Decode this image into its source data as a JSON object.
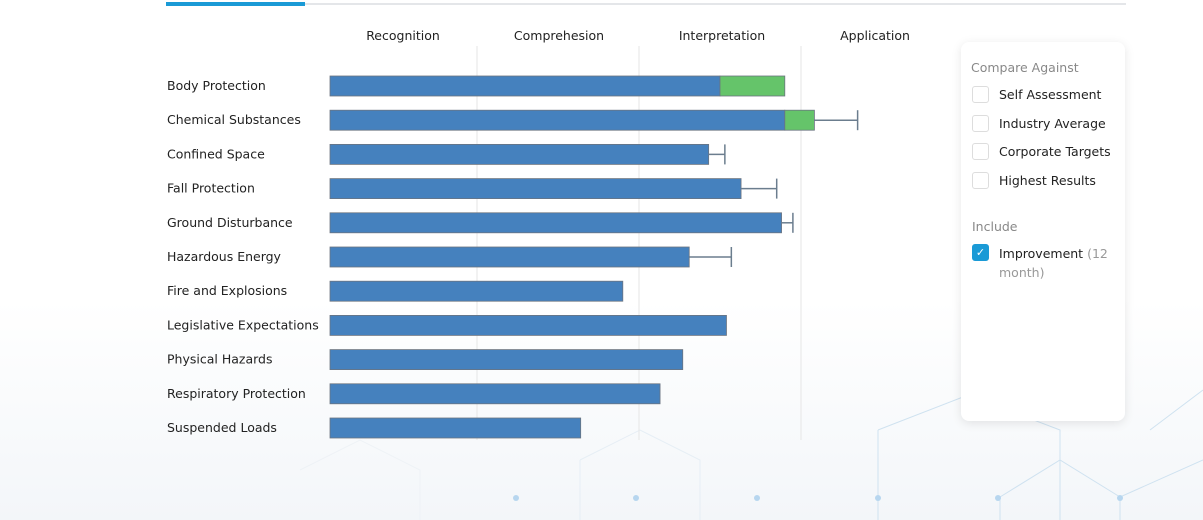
{
  "tabs": {
    "active_index": 0
  },
  "chart_data": {
    "type": "bar",
    "orientation": "horizontal",
    "stacked": true,
    "x_levels": [
      "Recognition",
      "Comprehesion",
      "Interpretation",
      "Application"
    ],
    "xlim": [
      0,
      4
    ],
    "grid": true,
    "categories": [
      "Body Protection",
      "Chemical Substances",
      "Confined Space",
      "Fall Protection",
      "Ground Disturbance",
      "Hazardous Energy",
      "Fire and Explosions",
      "Legislative Expectations",
      "Physical Hazards",
      "Respiratory Protection",
      "Suspended Loads"
    ],
    "series": [
      {
        "color": "#4581be",
        "values": [
          2.5,
          2.9,
          2.43,
          2.63,
          2.88,
          2.31,
          1.9,
          2.54,
          2.27,
          2.13,
          1.64
        ]
      },
      {
        "color": "#65c46a",
        "values": [
          0.4,
          0.19,
          0,
          0,
          0,
          0,
          0,
          0,
          0,
          0,
          0
        ]
      }
    ],
    "error_upper": [
      null,
      3.38,
      2.53,
      2.85,
      2.95,
      2.57,
      null,
      null,
      null,
      null,
      null
    ],
    "error_color": "#6b7d8e"
  },
  "panel": {
    "compare_title": "Compare Against",
    "compare_options": [
      {
        "label": "Self Assessment",
        "checked": false
      },
      {
        "label": "Industry Average",
        "checked": false
      },
      {
        "label": "Corporate Targets",
        "checked": false
      },
      {
        "label": "Highest Results",
        "checked": false
      }
    ],
    "include_title": "Include",
    "include_option": {
      "label": "Improvement",
      "suffix": "(12",
      "suffix2": "month)",
      "checked": true
    }
  }
}
